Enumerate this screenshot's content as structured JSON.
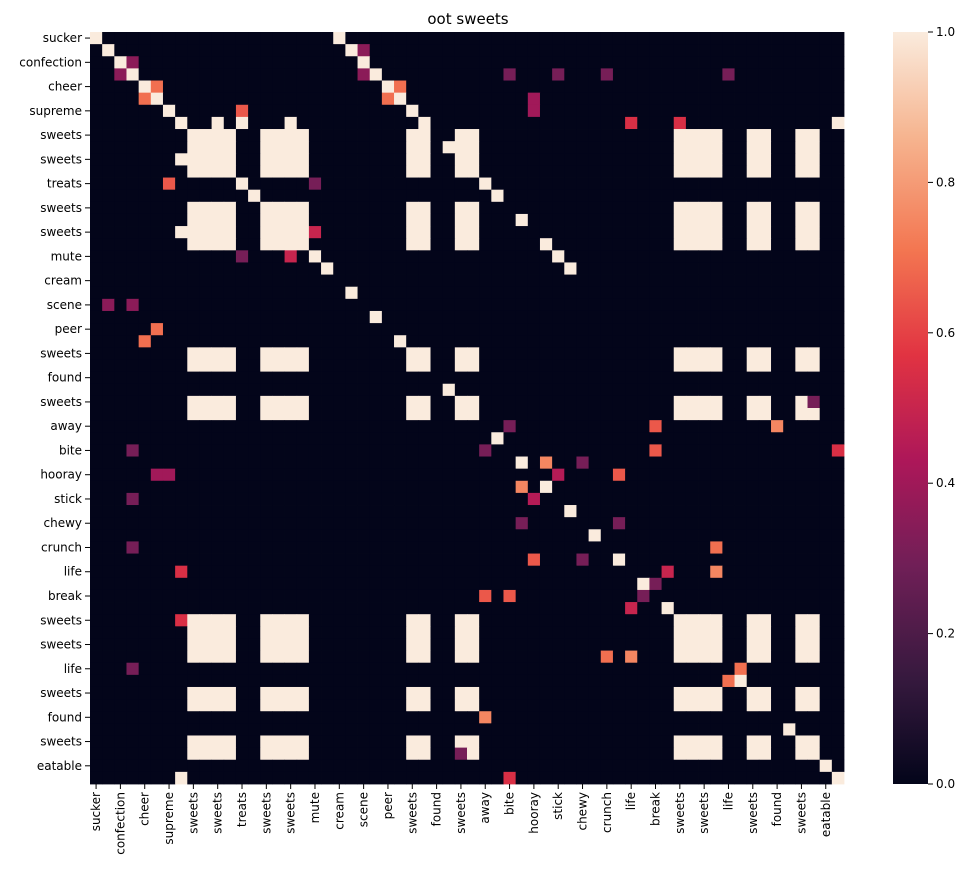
{
  "chart_data": {
    "type": "heatmap",
    "title": "oot sweets",
    "labels": [
      "sucker",
      "",
      "confection",
      "",
      "cheer",
      "",
      "supreme",
      "",
      "sweets",
      "",
      "sweets",
      "",
      "treats",
      "",
      "sweets",
      "",
      "sweets",
      "",
      "mute",
      "",
      "cream",
      "",
      "scene",
      "",
      "peer",
      "",
      "sweets",
      "",
      "found",
      "",
      "sweets",
      "",
      "away",
      "",
      "bite",
      "",
      "hooray",
      "",
      "stick",
      "",
      "chewy",
      "",
      "crunch",
      "",
      "life",
      "",
      "break",
      "",
      "sweets",
      "",
      "sweets",
      "",
      "life",
      "",
      "sweets",
      "",
      "found",
      "",
      "sweets",
      "",
      "eatable",
      ""
    ],
    "x_tick_labels": [
      "sucker",
      "confection",
      "cheer",
      "supreme",
      "sweets",
      "sweets",
      "treats",
      "sweets",
      "sweets",
      "mute",
      "cream",
      "scene",
      "peer",
      "sweets",
      "found",
      "sweets",
      "away",
      "bite",
      "hooray",
      "stick",
      "chewy",
      "crunch",
      "life",
      "break",
      "sweets",
      "sweets",
      "life",
      "sweets",
      "found",
      "sweets",
      "eatable"
    ],
    "y_tick_labels": [
      "sucker",
      "confection",
      "cheer",
      "supreme",
      "sweets",
      "sweets",
      "treats",
      "sweets",
      "sweets",
      "mute",
      "cream",
      "scene",
      "peer",
      "sweets",
      "found",
      "sweets",
      "away",
      "bite",
      "hooray",
      "stick",
      "chewy",
      "crunch",
      "life",
      "break",
      "sweets",
      "sweets",
      "life",
      "sweets",
      "found",
      "sweets",
      "eatable"
    ],
    "n": 62,
    "vmin": 0.0,
    "vmax": 1.0,
    "colorbar_ticks": [
      "0.0",
      "0.2",
      "0.4",
      "0.6",
      "0.8",
      "1.0"
    ],
    "colormap": [
      "#03051a",
      "#36193e",
      "#701f57",
      "#ad1759",
      "#e13342",
      "#f37651",
      "#f6b48f",
      "#faebdd"
    ],
    "xlabel": "",
    "ylabel": "",
    "sweets_rows": [
      8,
      10,
      14,
      16,
      26,
      30,
      48,
      50,
      54,
      58
    ],
    "cells": [
      [
        0,
        0,
        1
      ],
      [
        20,
        0,
        1
      ],
      [
        1,
        1,
        1
      ],
      [
        21,
        1,
        1
      ],
      [
        2,
        2,
        1
      ],
      [
        22,
        2,
        1
      ],
      [
        3,
        3,
        1
      ],
      [
        23,
        3,
        1
      ],
      [
        4,
        4,
        1
      ],
      [
        24,
        4,
        1
      ],
      [
        5,
        5,
        1
      ],
      [
        25,
        5,
        1
      ],
      [
        6,
        6,
        1
      ],
      [
        26,
        6,
        1
      ],
      [
        7,
        7,
        1
      ],
      [
        27,
        7,
        1
      ],
      [
        9,
        9,
        1
      ],
      [
        29,
        9,
        1
      ],
      [
        11,
        11,
        1
      ],
      [
        31,
        11,
        1
      ],
      [
        12,
        12,
        1
      ],
      [
        32,
        12,
        1
      ],
      [
        13,
        13,
        1
      ],
      [
        33,
        13,
        1
      ],
      [
        15,
        15,
        1
      ],
      [
        35,
        15,
        1
      ],
      [
        17,
        17,
        1
      ],
      [
        37,
        17,
        1
      ],
      [
        18,
        18,
        1
      ],
      [
        38,
        18,
        1
      ],
      [
        19,
        19,
        1
      ],
      [
        39,
        19,
        1
      ],
      [
        21,
        21,
        1
      ],
      [
        23,
        23,
        1
      ],
      [
        25,
        25,
        1
      ],
      [
        27,
        27,
        1
      ],
      [
        29,
        29,
        1
      ],
      [
        31,
        31,
        1
      ],
      [
        33,
        33,
        1
      ],
      [
        35,
        35,
        1
      ],
      [
        37,
        37,
        1
      ],
      [
        39,
        39,
        1
      ],
      [
        41,
        41,
        1
      ],
      [
        43,
        43,
        1
      ],
      [
        45,
        45,
        1
      ],
      [
        47,
        47,
        1
      ],
      [
        49,
        49,
        1
      ],
      [
        51,
        51,
        1
      ],
      [
        53,
        53,
        1
      ],
      [
        55,
        55,
        1
      ],
      [
        57,
        57,
        1
      ],
      [
        59,
        59,
        1
      ],
      [
        60,
        60,
        1
      ],
      [
        61,
        61,
        1
      ],
      [
        2,
        3,
        0.35
      ],
      [
        3,
        2,
        0.35
      ],
      [
        22,
        1,
        0.35
      ],
      [
        1,
        22,
        0.35
      ],
      [
        22,
        3,
        0.35
      ],
      [
        3,
        22,
        0.35
      ],
      [
        34,
        3,
        0.3
      ],
      [
        3,
        34,
        0.3
      ],
      [
        38,
        3,
        0.3
      ],
      [
        3,
        38,
        0.3
      ],
      [
        42,
        3,
        0.3
      ],
      [
        3,
        42,
        0.3
      ],
      [
        52,
        3,
        0.3
      ],
      [
        3,
        52,
        0.3
      ],
      [
        5,
        4,
        0.7
      ],
      [
        4,
        5,
        0.7
      ],
      [
        24,
        5,
        0.7
      ],
      [
        5,
        24,
        0.7
      ],
      [
        25,
        4,
        0.7
      ],
      [
        4,
        25,
        0.7
      ],
      [
        36,
        5,
        0.4
      ],
      [
        5,
        36,
        0.4
      ],
      [
        36,
        6,
        0.4
      ],
      [
        6,
        36,
        0.4
      ],
      [
        10,
        7,
        1
      ],
      [
        7,
        10,
        1
      ],
      [
        12,
        7,
        1
      ],
      [
        16,
        7,
        1
      ],
      [
        7,
        16,
        1
      ],
      [
        12,
        6,
        0.65
      ],
      [
        6,
        12,
        0.65
      ],
      [
        44,
        7,
        0.55
      ],
      [
        7,
        44,
        0.55
      ],
      [
        48,
        7,
        0.55
      ],
      [
        7,
        48,
        0.55
      ],
      [
        61,
        7,
        1
      ],
      [
        7,
        61,
        1
      ],
      [
        18,
        12,
        0.3
      ],
      [
        12,
        18,
        0.3
      ],
      [
        18,
        16,
        0.5
      ],
      [
        16,
        18,
        0.5
      ],
      [
        37,
        35,
        0.75
      ],
      [
        35,
        37,
        0.75
      ],
      [
        32,
        34,
        0.3
      ],
      [
        34,
        32,
        0.3
      ],
      [
        46,
        32,
        0.65
      ],
      [
        32,
        46,
        0.65
      ],
      [
        46,
        34,
        0.65
      ],
      [
        34,
        46,
        0.65
      ],
      [
        38,
        36,
        0.45
      ],
      [
        36,
        38,
        0.45
      ],
      [
        40,
        35,
        0.3
      ],
      [
        35,
        40,
        0.3
      ],
      [
        43,
        36,
        0.65
      ],
      [
        36,
        43,
        0.65
      ],
      [
        43,
        40,
        0.3
      ],
      [
        40,
        43,
        0.3
      ],
      [
        44,
        47,
        0.5
      ],
      [
        47,
        44,
        0.5
      ],
      [
        51,
        42,
        0.7
      ],
      [
        42,
        51,
        0.7
      ],
      [
        51,
        44,
        0.75
      ],
      [
        44,
        51,
        0.75
      ],
      [
        53,
        52,
        0.7
      ],
      [
        52,
        53,
        0.7
      ],
      [
        45,
        46,
        0.3
      ],
      [
        46,
        45,
        0.3
      ],
      [
        59,
        30,
        0.3
      ],
      [
        30,
        59,
        0.3
      ],
      [
        56,
        32,
        0.75
      ],
      [
        32,
        56,
        0.75
      ],
      [
        61,
        34,
        0.55
      ],
      [
        34,
        61,
        0.55
      ]
    ]
  }
}
